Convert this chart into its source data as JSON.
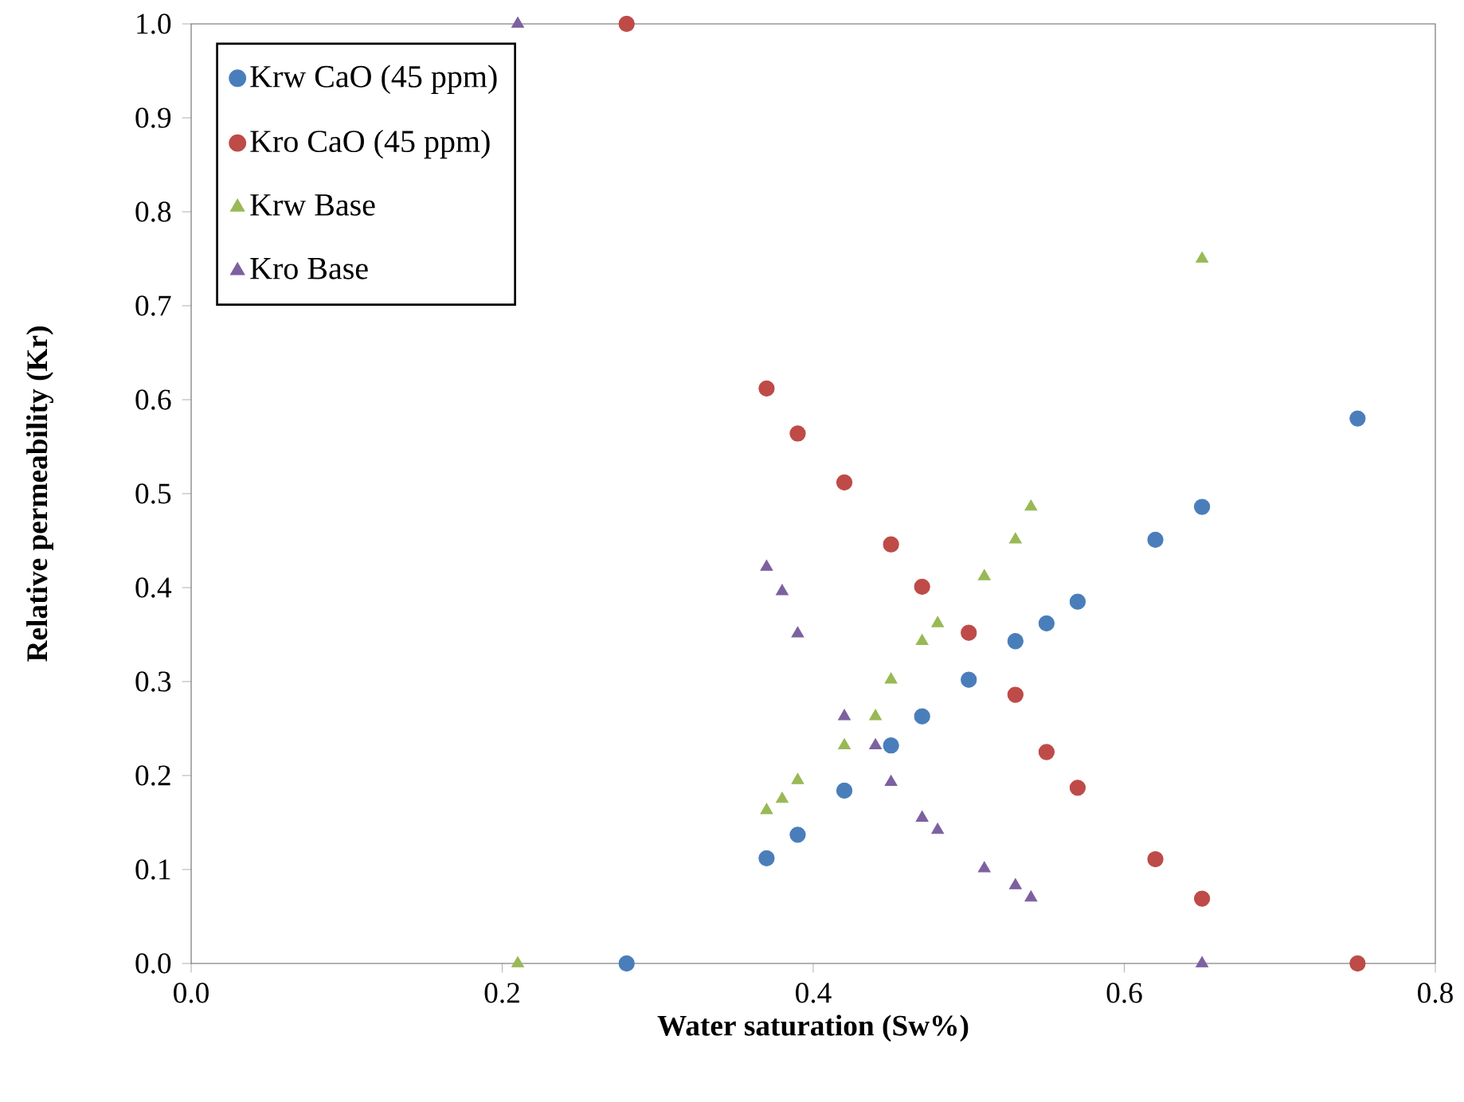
{
  "chart_data": {
    "type": "scatter",
    "xlabel": "Water saturation (Sw%)",
    "ylabel": "Relative permeability (Kr)",
    "xlim": [
      0,
      0.8
    ],
    "ylim": [
      0,
      1
    ],
    "xticks": [
      {
        "value": 0,
        "label": "0.0"
      },
      {
        "value": 0.2,
        "label": "0.2"
      },
      {
        "value": 0.4,
        "label": "0.4"
      },
      {
        "value": 0.6,
        "label": "0.6"
      },
      {
        "value": 0.8,
        "label": "0.8"
      }
    ],
    "yticks": [
      {
        "value": 0,
        "label": "0.0"
      },
      {
        "value": 0.1,
        "label": "0.1"
      },
      {
        "value": 0.2,
        "label": "0.2"
      },
      {
        "value": 0.3,
        "label": "0.3"
      },
      {
        "value": 0.4,
        "label": "0.4"
      },
      {
        "value": 0.5,
        "label": "0.5"
      },
      {
        "value": 0.6,
        "label": "0.6"
      },
      {
        "value": 0.7,
        "label": "0.7"
      },
      {
        "value": 0.8,
        "label": "0.8"
      },
      {
        "value": 0.9,
        "label": "0.9"
      },
      {
        "value": 1,
        "label": "1.0"
      }
    ],
    "grid": false,
    "legend": "top left",
    "series": [
      {
        "name": "Krw CaO (45 ppm)",
        "color": "#4a7ebb",
        "marker": "circle",
        "x": [
          0.28,
          0.37,
          0.39,
          0.42,
          0.45,
          0.47,
          0.5,
          0.53,
          0.55,
          0.57,
          0.62,
          0.65,
          0.75
        ],
        "values": [
          0,
          0.112,
          0.137,
          0.184,
          0.232,
          0.263,
          0.302,
          0.343,
          0.362,
          0.385,
          0.451,
          0.486,
          0.58
        ]
      },
      {
        "name": "Kro CaO (45 ppm)",
        "color": "#be4b48",
        "marker": "circle",
        "x": [
          0.28,
          0.37,
          0.39,
          0.42,
          0.45,
          0.47,
          0.5,
          0.53,
          0.55,
          0.57,
          0.62,
          0.65,
          0.75
        ],
        "values": [
          1.0,
          0.612,
          0.564,
          0.512,
          0.446,
          0.401,
          0.352,
          0.286,
          0.225,
          0.187,
          0.111,
          0.069,
          0
        ]
      },
      {
        "name": "Krw Base",
        "color": "#98b954",
        "marker": "triangle",
        "x": [
          0.21,
          0.37,
          0.38,
          0.39,
          0.42,
          0.44,
          0.45,
          0.47,
          0.48,
          0.51,
          0.53,
          0.54,
          0.65
        ],
        "values": [
          0,
          0.163,
          0.175,
          0.195,
          0.232,
          0.263,
          0.302,
          0.343,
          0.362,
          0.412,
          0.451,
          0.486,
          0.75
        ]
      },
      {
        "name": "Kro Base",
        "color": "#7d60a0",
        "marker": "triangle",
        "x": [
          0.21,
          0.37,
          0.38,
          0.39,
          0.42,
          0.44,
          0.45,
          0.47,
          0.48,
          0.51,
          0.53,
          0.54,
          0.65
        ],
        "values": [
          1.0,
          0.422,
          0.396,
          0.351,
          0.263,
          0.232,
          0.193,
          0.155,
          0.142,
          0.101,
          0.083,
          0.07,
          0
        ]
      }
    ]
  }
}
